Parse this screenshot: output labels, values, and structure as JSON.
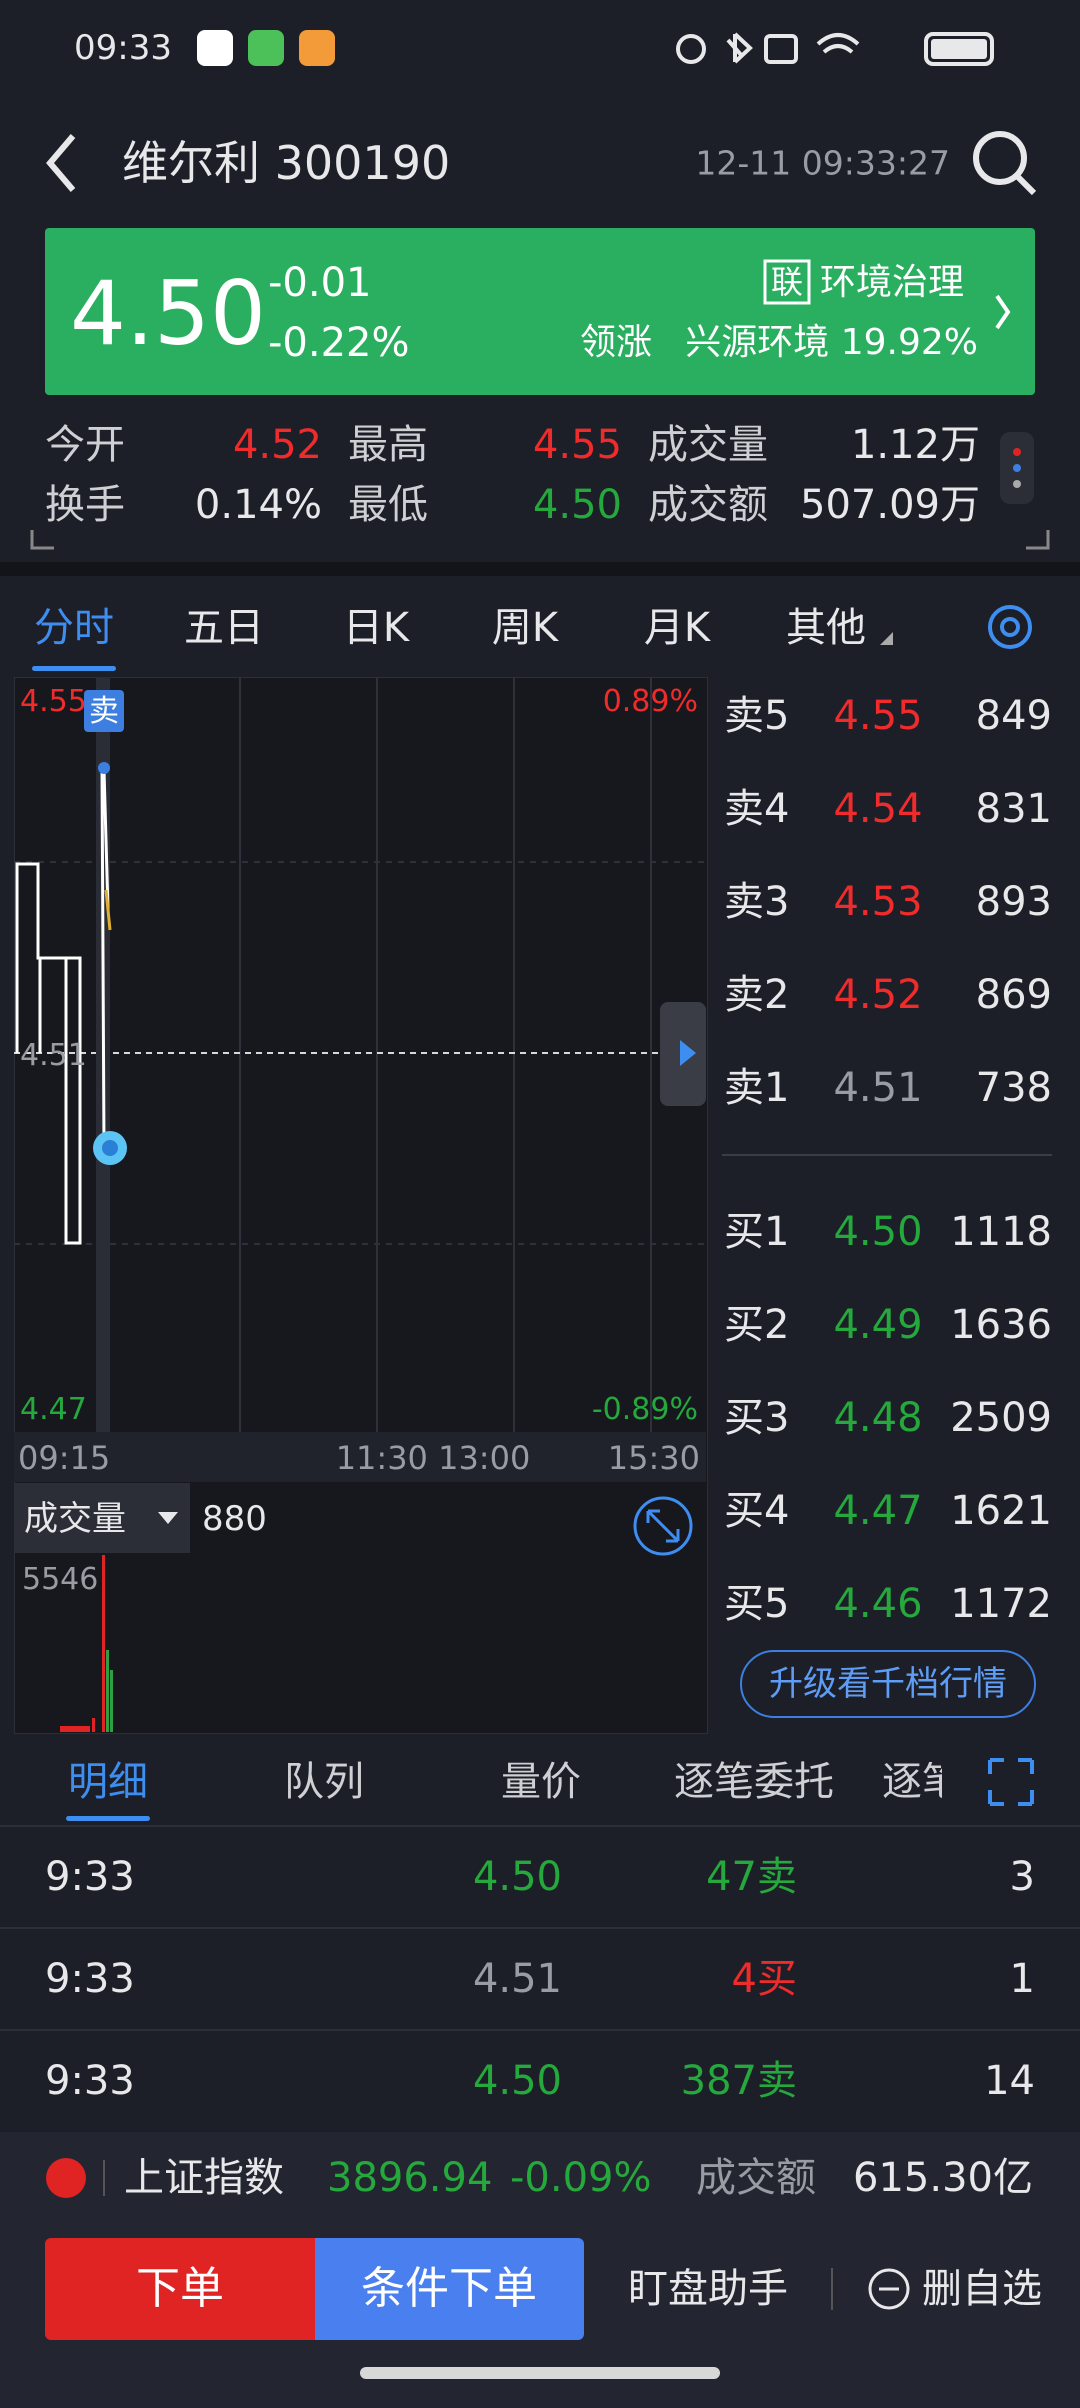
{
  "status_bar": {
    "time": "09:33"
  },
  "header": {
    "title": "维尔利 300190",
    "timestamp": "12-11 09:33:27"
  },
  "quote": {
    "price": "4.50",
    "change": "-0.01",
    "change_pct": "-0.22%",
    "sector_tag": "联",
    "sector": "环境治理",
    "leader_label": "领涨",
    "leader": "兴源环境 19.92%"
  },
  "stats": {
    "rows": [
      [
        "今开",
        "4.52",
        "最高",
        "4.55",
        "成交量",
        "1.12万"
      ],
      [
        "换手",
        "0.14%",
        "最低",
        "4.50",
        "成交额",
        "507.09万"
      ]
    ]
  },
  "chart_tabs": [
    "分时",
    "五日",
    "日K",
    "周K",
    "月K",
    "其他"
  ],
  "intraday": {
    "price_high": "4.55",
    "price_mid": "4.51",
    "price_low": "4.47",
    "pct_high": "0.89%",
    "pct_low": "-0.89%",
    "marker": "卖",
    "times": [
      "09:15",
      "11:30 13:00",
      "15:30"
    ],
    "volume_label": "成交量",
    "volume": "880",
    "volume_max": "5546"
  },
  "order_book": {
    "asks": [
      [
        "卖5",
        "4.55",
        "849"
      ],
      [
        "卖4",
        "4.54",
        "831"
      ],
      [
        "卖3",
        "4.53",
        "893"
      ],
      [
        "卖2",
        "4.52",
        "869"
      ],
      [
        "卖1",
        "4.51",
        "738"
      ]
    ],
    "bids": [
      [
        "买1",
        "4.50",
        "1118"
      ],
      [
        "买2",
        "4.49",
        "1636"
      ],
      [
        "买3",
        "4.48",
        "2509"
      ],
      [
        "买4",
        "4.47",
        "1621"
      ],
      [
        "买5",
        "4.46",
        "1172"
      ]
    ],
    "upgrade": "升级看千档行情"
  },
  "detail_tabs": [
    "明细",
    "队列",
    "量价",
    "逐笔委托",
    "逐笔"
  ],
  "trades": [
    [
      "9:33",
      "4.50",
      "47卖",
      "3"
    ],
    [
      "9:33",
      "4.51",
      "4买",
      "1"
    ],
    [
      "9:33",
      "4.50",
      "387卖",
      "14"
    ]
  ],
  "index_bar": {
    "name": "上证指数",
    "value": "3896.94",
    "change": "-0.09%",
    "turnover_label": "成交额",
    "turnover": "615.30亿"
  },
  "actions": [
    "下单",
    "条件下单",
    "盯盘助手",
    "删自选"
  ]
}
